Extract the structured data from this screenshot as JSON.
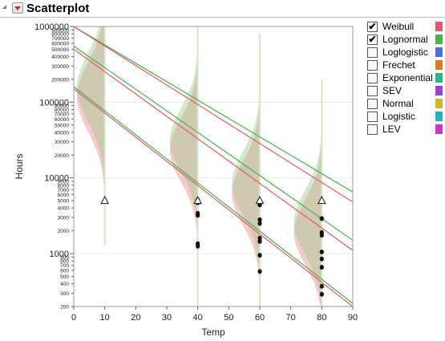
{
  "header": {
    "title": "Scatterplot"
  },
  "legend": {
    "items": [
      {
        "label": "Weibull",
        "checked": true,
        "color": "#e05a6a"
      },
      {
        "label": "Lognormal",
        "checked": true,
        "color": "#4caf50"
      },
      {
        "label": "Loglogistic",
        "checked": false,
        "color": "#4a6fd8"
      },
      {
        "label": "Frechet",
        "checked": false,
        "color": "#d47a2c"
      },
      {
        "label": "Exponential",
        "checked": false,
        "color": "#2cb58a"
      },
      {
        "label": "SEV",
        "checked": false,
        "color": "#9b3fd0"
      },
      {
        "label": "Normal",
        "checked": false,
        "color": "#c8b82a"
      },
      {
        "label": "Logistic",
        "checked": false,
        "color": "#2ab0b8"
      },
      {
        "label": "LEV",
        "checked": false,
        "color": "#c83ac8"
      }
    ]
  },
  "chart_data": {
    "type": "scatter",
    "xlabel": "Temp",
    "ylabel": "Hours",
    "xlim": [
      0,
      90
    ],
    "ylim": [
      200,
      1000000
    ],
    "yscale": "log",
    "x_ticks": [
      0,
      10,
      20,
      30,
      40,
      50,
      60,
      70,
      80,
      90
    ],
    "y_ticks_major": [
      1000,
      10000,
      100000,
      1000000
    ],
    "y_tick_labels": [
      {
        "value": 200,
        "label": "200"
      },
      {
        "value": 300,
        "label": "300"
      },
      {
        "value": 400,
        "label": "400"
      },
      {
        "value": 500,
        "label": "500"
      },
      {
        "value": 600,
        "label": "600"
      },
      {
        "value": 700,
        "label": "700"
      },
      {
        "value": 800,
        "label": "800"
      },
      {
        "value": 900,
        "label": "900"
      },
      {
        "value": 1000,
        "label": "1000"
      },
      {
        "value": 2000,
        "label": "2000"
      },
      {
        "value": 3000,
        "label": "3000"
      },
      {
        "value": 4000,
        "label": "4000"
      },
      {
        "value": 5000,
        "label": "5000"
      },
      {
        "value": 6000,
        "label": "6000"
      },
      {
        "value": 7000,
        "label": "7000"
      },
      {
        "value": 8000,
        "label": "8000"
      },
      {
        "value": 9000,
        "label": "9000"
      },
      {
        "value": 10000,
        "label": "10000"
      },
      {
        "value": 20000,
        "label": "20000"
      },
      {
        "value": 30000,
        "label": "30000"
      },
      {
        "value": 40000,
        "label": "40000"
      },
      {
        "value": 50000,
        "label": "50000"
      },
      {
        "value": 60000,
        "label": "60000"
      },
      {
        "value": 70000,
        "label": "70000"
      },
      {
        "value": 80000,
        "label": "80000"
      },
      {
        "value": 90000,
        "label": "90000"
      },
      {
        "value": 100000,
        "label": "100000"
      },
      {
        "value": 200000,
        "label": "200000"
      },
      {
        "value": 300000,
        "label": "300000"
      },
      {
        "value": 400000,
        "label": "400000"
      },
      {
        "value": 500000,
        "label": "500000"
      },
      {
        "value": 600000,
        "label": "600000"
      },
      {
        "value": 700000,
        "label": "700000"
      },
      {
        "value": 800000,
        "label": "800000"
      },
      {
        "value": 900000,
        "label": "900000"
      },
      {
        "value": 1000000,
        "label": "1000000"
      }
    ],
    "failures": [
      {
        "x": 40,
        "y": 5100
      },
      {
        "x": 40,
        "y": 4900
      },
      {
        "x": 40,
        "y": 4700
      },
      {
        "x": 40,
        "y": 3400
      },
      {
        "x": 40,
        "y": 3200
      },
      {
        "x": 40,
        "y": 1350
      },
      {
        "x": 40,
        "y": 1250
      },
      {
        "x": 60,
        "y": 4400
      },
      {
        "x": 60,
        "y": 2800
      },
      {
        "x": 60,
        "y": 2500
      },
      {
        "x": 60,
        "y": 1600
      },
      {
        "x": 60,
        "y": 1450
      },
      {
        "x": 60,
        "y": 950
      },
      {
        "x": 60,
        "y": 580
      },
      {
        "x": 80,
        "y": 2900
      },
      {
        "x": 80,
        "y": 1900
      },
      {
        "x": 80,
        "y": 1750
      },
      {
        "x": 80,
        "y": 1050
      },
      {
        "x": 80,
        "y": 850
      },
      {
        "x": 80,
        "y": 660
      },
      {
        "x": 80,
        "y": 370
      },
      {
        "x": 80,
        "y": 290
      }
    ],
    "censored": [
      {
        "x": 10,
        "y": 5000
      },
      {
        "x": 40,
        "y": 5000
      },
      {
        "x": 60,
        "y": 5000
      },
      {
        "x": 80,
        "y": 5000
      }
    ],
    "fit_lines": [
      {
        "series": "Lognormal",
        "color": "#4caf50",
        "points": [
          [
            0,
            1000000
          ],
          [
            90,
            6500
          ]
        ]
      },
      {
        "series": "Weibull",
        "color": "#e05a6a",
        "points": [
          [
            0,
            1000000
          ],
          [
            90,
            4800
          ]
        ]
      },
      {
        "series": "Lognormal",
        "color": "#4caf50",
        "points": [
          [
            0,
            550000
          ],
          [
            90,
            1500
          ]
        ]
      },
      {
        "series": "Weibull",
        "color": "#e05a6a",
        "points": [
          [
            0,
            500000
          ],
          [
            90,
            1100
          ]
        ]
      },
      {
        "series": "Lognormal",
        "color": "#4caf50",
        "points": [
          [
            0,
            160000
          ],
          [
            90,
            220
          ]
        ]
      },
      {
        "series": "Weibull",
        "color": "#e05a6a",
        "points": [
          [
            0,
            150000
          ],
          [
            90,
            200
          ]
        ]
      }
    ],
    "densities": [
      {
        "x": 10,
        "center": 140000,
        "sigma_decades": 0.45,
        "width": 9,
        "top": 1000000,
        "bottom": 1300
      },
      {
        "x": 40,
        "center": 28000,
        "sigma_decades": 0.42,
        "width": 9,
        "top": 1000000,
        "bottom": 200
      },
      {
        "x": 60,
        "center": 7500,
        "sigma_decades": 0.42,
        "width": 9,
        "top": 800000,
        "bottom": 200
      },
      {
        "x": 80,
        "center": 2300,
        "sigma_decades": 0.42,
        "width": 9,
        "top": 200000,
        "bottom": 200
      }
    ]
  }
}
